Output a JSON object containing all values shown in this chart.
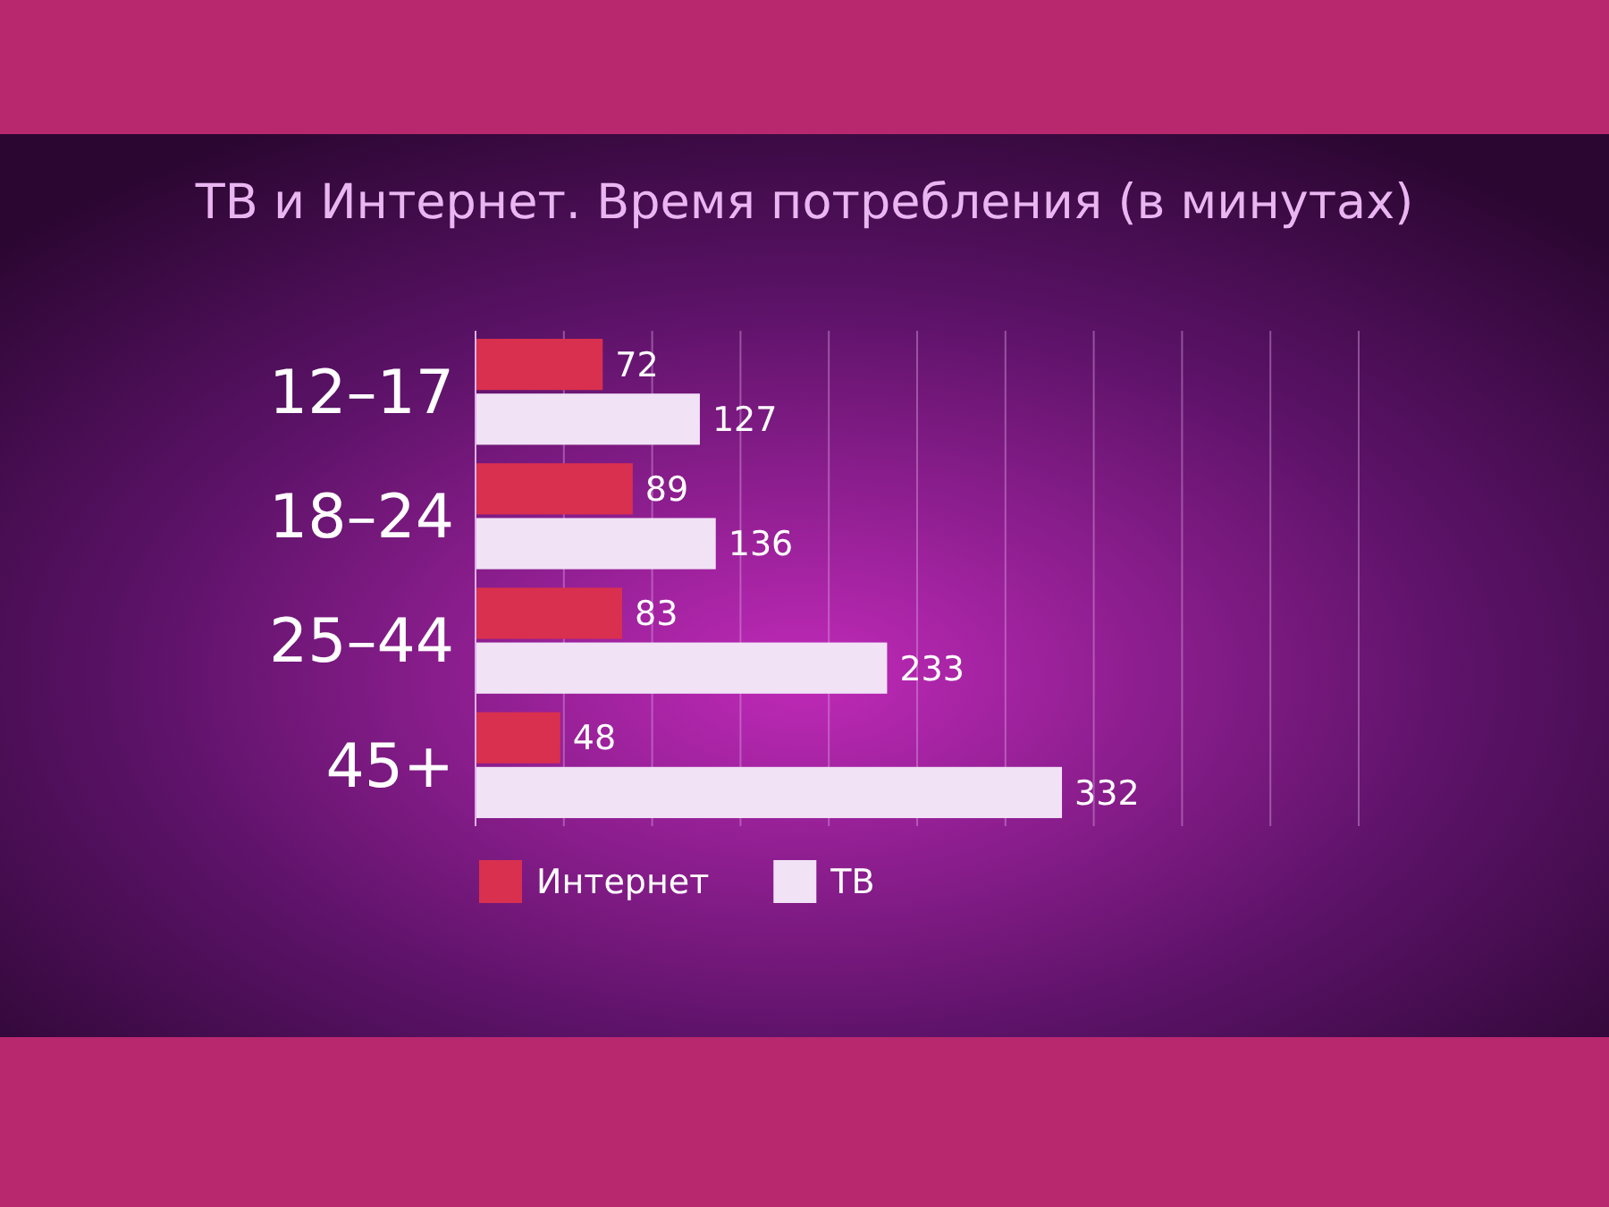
{
  "chart_data": {
    "type": "bar",
    "orientation": "horizontal",
    "title": "ТВ и Интернет. Время потребления (в минутах)",
    "categories": [
      "12–17",
      "18–24",
      "25–44",
      "45+"
    ],
    "series": [
      {
        "name": "Интернет",
        "color": "#d9304f",
        "values": [
          72,
          89,
          83,
          48
        ]
      },
      {
        "name": "ТВ",
        "color": "#f1e2f6",
        "values": [
          127,
          136,
          233,
          332
        ]
      }
    ],
    "xlim": [
      0,
      500
    ],
    "xticks": [
      {
        "value": 0,
        "label": null
      },
      {
        "value": 50,
        "label": null
      },
      {
        "value": 100,
        "label": null
      },
      {
        "value": 150,
        "label": null
      },
      {
        "value": 200,
        "label": null
      },
      {
        "value": 250,
        "label": null
      },
      {
        "value": 300,
        "label": null
      },
      {
        "value": 350,
        "label": null
      },
      {
        "value": 400,
        "label": null
      },
      {
        "value": 450,
        "label": null
      },
      {
        "value": 500,
        "label": null
      }
    ],
    "tick_labels": "y",
    "grid": "x",
    "data_labels": true,
    "legend": "bottom"
  }
}
